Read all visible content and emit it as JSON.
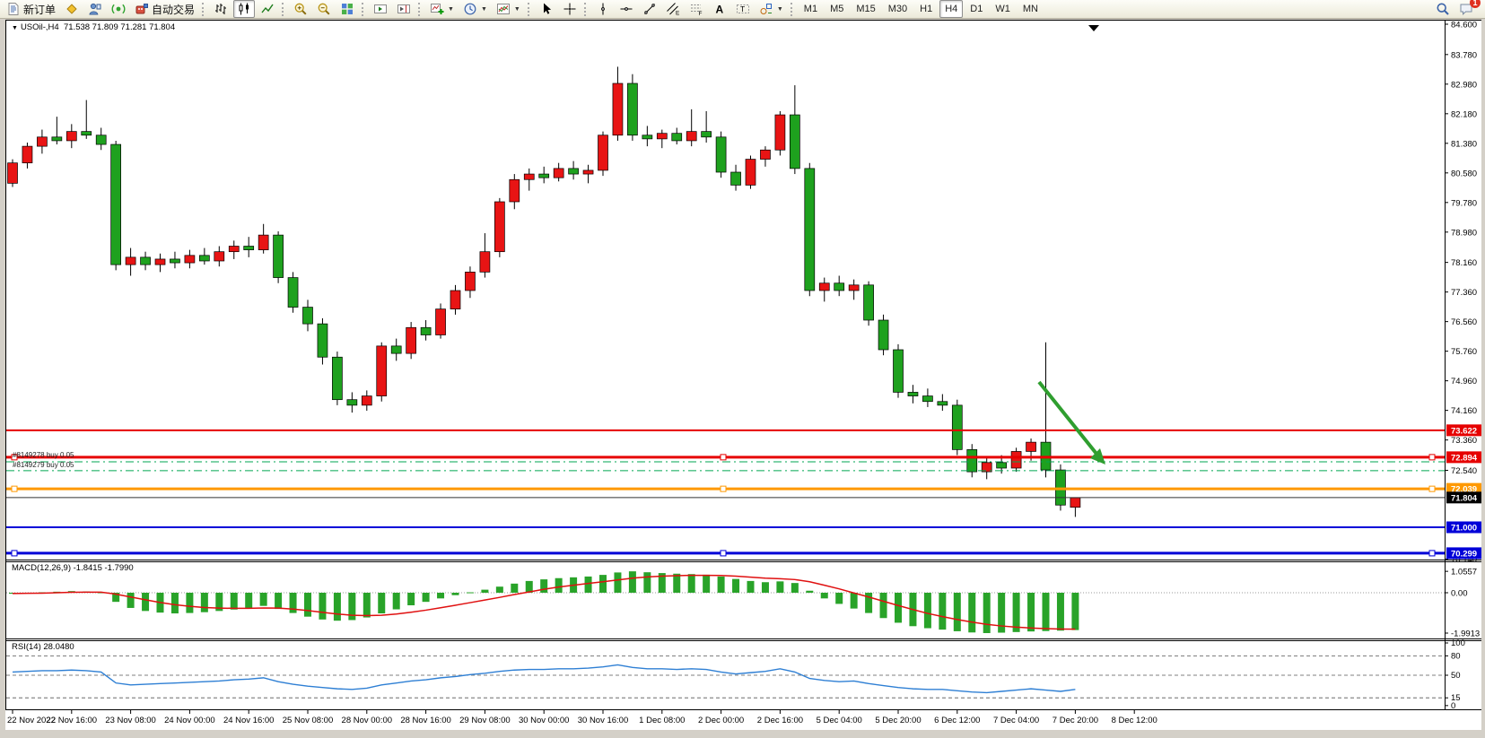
{
  "toolbar": {
    "new_order_label": "新订单",
    "autotrade_label": "自动交易",
    "items": [
      {
        "icon": "new-order-icon",
        "label_key": "new_order_label",
        "name": "new-order-button"
      },
      {
        "icon": "market-watch-icon",
        "name": "market-watch-button"
      },
      {
        "icon": "navigator-icon",
        "name": "navigator-button"
      },
      {
        "icon": "alerts-icon",
        "name": "alerts-button"
      },
      {
        "icon": "autotrade-icon",
        "label_key": "autotrade_label",
        "name": "autotrading-button"
      },
      {
        "sep": true
      },
      {
        "icon": "bar-chart-icon",
        "name": "bar-chart-button"
      },
      {
        "icon": "candle-chart-icon",
        "name": "candle-chart-button",
        "active": true
      },
      {
        "icon": "line-chart-icon",
        "name": "line-chart-button"
      },
      {
        "sep": true
      },
      {
        "icon": "zoom-in-icon",
        "name": "zoom-in-button"
      },
      {
        "icon": "zoom-out-icon",
        "name": "zoom-out-button"
      },
      {
        "icon": "tile-windows-icon",
        "name": "tile-windows-button"
      },
      {
        "sep": true
      },
      {
        "icon": "auto-scroll-icon",
        "name": "auto-scroll-button"
      },
      {
        "icon": "chart-shift-icon",
        "name": "chart-shift-button"
      },
      {
        "sep": true
      },
      {
        "icon": "new-chart-icon",
        "name": "new-chart-button",
        "dropdown": true
      },
      {
        "icon": "profiles-icon",
        "name": "profiles-button",
        "dropdown": true
      },
      {
        "icon": "indicators-icon",
        "name": "indicators-button",
        "dropdown": true
      },
      {
        "sep": true
      },
      {
        "icon": "cursor-icon",
        "name": "cursor-button"
      },
      {
        "icon": "crosshair-icon",
        "name": "crosshair-button"
      },
      {
        "sep": true
      },
      {
        "icon": "vline-icon",
        "name": "vertical-line-button"
      },
      {
        "icon": "hline-icon",
        "name": "horizontal-line-button"
      },
      {
        "icon": "trendline-icon",
        "name": "trendline-button"
      },
      {
        "icon": "channel-icon",
        "name": "equidistant-channel-button"
      },
      {
        "icon": "fibonacci-icon",
        "name": "fibonacci-button"
      },
      {
        "icon": "text-icon",
        "name": "text-button"
      },
      {
        "icon": "label-icon",
        "name": "text-label-button"
      },
      {
        "icon": "shapes-icon",
        "name": "arrows-button",
        "dropdown": true
      },
      {
        "sep": true
      }
    ],
    "timeframes": [
      "M1",
      "M5",
      "M15",
      "M30",
      "H1",
      "H4",
      "D1",
      "W1",
      "MN"
    ],
    "active_timeframe": "H4",
    "notification_count": "1"
  },
  "chart": {
    "title_symbol": "USOil-,H4",
    "title_ohlc": "71.538 71.809 71.281 71.804",
    "axis_prices": [
      "84.600",
      "83.780",
      "82.980",
      "82.180",
      "81.380",
      "80.580",
      "79.780",
      "78.980",
      "78.160",
      "77.360",
      "76.560",
      "75.760",
      "74.960",
      "74.160",
      "73.360",
      "72.540",
      "70.140"
    ],
    "price_badges": [
      {
        "text": "73.622",
        "bg": "#e60000",
        "fg": "#ffffff",
        "price": 73.622
      },
      {
        "text": "72.894",
        "bg": "#e60000",
        "fg": "#ffffff",
        "price": 72.894
      },
      {
        "text": "72.039",
        "bg": "#ff9900",
        "fg": "#ffffff",
        "price": 72.039
      },
      {
        "text": "71.804",
        "bg": "#000000",
        "fg": "#ffffff",
        "price": 71.804
      },
      {
        "text": "71.000",
        "bg": "#0000d8",
        "fg": "#ffffff",
        "price": 71.0
      },
      {
        "text": "70.299",
        "bg": "#0000d8",
        "fg": "#ffffff",
        "price": 70.299
      }
    ],
    "hlines": [
      {
        "price": 73.622,
        "color": "#e60000",
        "width": 2,
        "handles": false
      },
      {
        "price": 72.894,
        "color": "#e60000",
        "width": 3,
        "handles": true
      },
      {
        "price": 72.039,
        "color": "#ff9900",
        "width": 3,
        "handles": true
      },
      {
        "price": 71.804,
        "color": "#333333",
        "width": 1,
        "handles": false
      },
      {
        "price": 71.0,
        "color": "#0000d8",
        "width": 2,
        "handles": false
      },
      {
        "price": 70.299,
        "color": "#0000d8",
        "width": 3,
        "handles": true
      }
    ],
    "orders": [
      {
        "label": "#8149278 buy 0.05",
        "price": 72.77,
        "color": "#00a650"
      },
      {
        "label": "#8149279 buy 0.05",
        "price": 72.53,
        "color": "#00a650"
      }
    ],
    "macd": {
      "label": "MACD(12,26,9) -1.8415 -1.7990",
      "axis": [
        [
          "1.0557",
          1.0557
        ],
        [
          "0.00",
          0
        ],
        [
          "-1.9913",
          -1.9913
        ]
      ]
    },
    "rsi": {
      "label": "RSI(14) 28.0480",
      "axis": [
        [
          "100",
          100
        ],
        [
          "80",
          80
        ],
        [
          "50",
          50
        ],
        [
          "15",
          15
        ],
        [
          "0",
          3
        ]
      ],
      "levels": [
        80,
        50,
        15
      ]
    }
  },
  "chart_data": {
    "type": "candlestick",
    "symbol": "USOil",
    "timeframe": "H4",
    "ylim": [
      70.14,
      84.6
    ],
    "up_color": "#e81414",
    "down_color": "#1ea11e",
    "x_labels": [
      "22 Nov 2022",
      "22 Nov 16:00",
      "23 Nov 08:00",
      "24 Nov 00:00",
      "24 Nov 16:00",
      "25 Nov 08:00",
      "28 Nov 00:00",
      "28 Nov 16:00",
      "29 Nov 08:00",
      "30 Nov 00:00",
      "30 Nov 16:00",
      "1 Dec 08:00",
      "2 Dec 00:00",
      "2 Dec 16:00",
      "5 Dec 04:00",
      "5 Dec 20:00",
      "6 Dec 12:00",
      "7 Dec 04:00",
      "7 Dec 20:00",
      "8 Dec 12:00"
    ],
    "candles": [
      [
        80.3,
        80.95,
        80.2,
        80.85
      ],
      [
        80.85,
        81.4,
        80.7,
        81.3
      ],
      [
        81.3,
        81.75,
        81.1,
        81.55
      ],
      [
        81.55,
        82.1,
        81.35,
        81.45
      ],
      [
        81.45,
        81.9,
        81.25,
        81.7
      ],
      [
        81.7,
        82.55,
        81.5,
        81.6
      ],
      [
        81.6,
        81.8,
        81.2,
        81.35
      ],
      [
        81.35,
        81.45,
        77.95,
        78.1
      ],
      [
        78.1,
        78.55,
        77.8,
        78.3
      ],
      [
        78.3,
        78.45,
        77.95,
        78.1
      ],
      [
        78.1,
        78.4,
        77.9,
        78.25
      ],
      [
        78.25,
        78.45,
        78.0,
        78.15
      ],
      [
        78.15,
        78.5,
        78.0,
        78.35
      ],
      [
        78.35,
        78.55,
        78.1,
        78.2
      ],
      [
        78.2,
        78.6,
        78.05,
        78.45
      ],
      [
        78.45,
        78.75,
        78.25,
        78.6
      ],
      [
        78.6,
        78.85,
        78.3,
        78.5
      ],
      [
        78.5,
        79.2,
        78.4,
        78.9
      ],
      [
        78.9,
        79.0,
        77.6,
        77.75
      ],
      [
        77.75,
        77.9,
        76.8,
        76.95
      ],
      [
        76.95,
        77.15,
        76.3,
        76.5
      ],
      [
        76.5,
        76.65,
        75.4,
        75.6
      ],
      [
        75.6,
        75.75,
        74.3,
        74.45
      ],
      [
        74.45,
        74.65,
        74.1,
        74.3
      ],
      [
        74.3,
        74.7,
        74.15,
        74.55
      ],
      [
        74.55,
        76.0,
        74.4,
        75.9
      ],
      [
        75.9,
        76.1,
        75.5,
        75.7
      ],
      [
        75.7,
        76.55,
        75.55,
        76.4
      ],
      [
        76.4,
        76.6,
        76.05,
        76.2
      ],
      [
        76.2,
        77.05,
        76.1,
        76.9
      ],
      [
        76.9,
        77.55,
        76.75,
        77.4
      ],
      [
        77.4,
        78.05,
        77.2,
        77.9
      ],
      [
        77.9,
        78.95,
        77.75,
        78.45
      ],
      [
        78.45,
        79.9,
        78.3,
        79.8
      ],
      [
        79.8,
        80.55,
        79.6,
        80.4
      ],
      [
        80.4,
        80.7,
        80.1,
        80.55
      ],
      [
        80.55,
        80.75,
        80.3,
        80.45
      ],
      [
        80.45,
        80.85,
        80.35,
        80.7
      ],
      [
        80.7,
        80.9,
        80.4,
        80.55
      ],
      [
        80.55,
        80.8,
        80.3,
        80.65
      ],
      [
        80.65,
        81.7,
        80.5,
        81.6
      ],
      [
        81.6,
        83.45,
        81.45,
        83.0
      ],
      [
        83.0,
        83.25,
        81.45,
        81.6
      ],
      [
        81.6,
        81.85,
        81.3,
        81.5
      ],
      [
        81.5,
        81.75,
        81.25,
        81.65
      ],
      [
        81.65,
        81.8,
        81.35,
        81.45
      ],
      [
        81.45,
        82.3,
        81.3,
        81.7
      ],
      [
        81.7,
        82.25,
        81.4,
        81.55
      ],
      [
        81.55,
        81.7,
        80.45,
        80.6
      ],
      [
        80.6,
        80.8,
        80.1,
        80.25
      ],
      [
        80.25,
        81.05,
        80.15,
        80.95
      ],
      [
        80.95,
        81.3,
        80.75,
        81.2
      ],
      [
        81.2,
        82.25,
        81.05,
        82.15
      ],
      [
        82.15,
        82.95,
        80.55,
        80.7
      ],
      [
        80.7,
        80.85,
        77.25,
        77.4
      ],
      [
        77.4,
        77.75,
        77.1,
        77.6
      ],
      [
        77.6,
        77.8,
        77.25,
        77.4
      ],
      [
        77.4,
        77.7,
        77.15,
        77.55
      ],
      [
        77.55,
        77.65,
        76.45,
        76.6
      ],
      [
        76.6,
        76.75,
        75.65,
        75.8
      ],
      [
        75.8,
        75.95,
        74.5,
        74.65
      ],
      [
        74.65,
        74.85,
        74.35,
        74.55
      ],
      [
        74.55,
        74.75,
        74.25,
        74.4
      ],
      [
        74.4,
        74.6,
        74.15,
        74.3
      ],
      [
        74.3,
        74.45,
        72.95,
        73.1
      ],
      [
        73.1,
        73.25,
        72.35,
        72.5
      ],
      [
        72.5,
        72.9,
        72.3,
        72.75
      ],
      [
        72.75,
        72.95,
        72.45,
        72.6
      ],
      [
        72.6,
        73.15,
        72.5,
        73.05
      ],
      [
        73.05,
        73.4,
        72.8,
        73.3
      ],
      [
        73.3,
        76.0,
        72.35,
        72.55
      ],
      [
        72.55,
        72.7,
        71.45,
        71.6
      ],
      [
        71.54,
        71.81,
        71.28,
        71.8
      ]
    ],
    "macd_hist": [
      -0.05,
      -0.02,
      0.02,
      0.05,
      0.08,
      0.06,
      0.02,
      -0.45,
      -0.75,
      -0.9,
      -0.98,
      -1.02,
      -1.0,
      -0.96,
      -0.9,
      -0.83,
      -0.75,
      -0.65,
      -0.8,
      -1.0,
      -1.18,
      -1.32,
      -1.38,
      -1.35,
      -1.22,
      -1.02,
      -0.82,
      -0.62,
      -0.45,
      -0.28,
      -0.12,
      0.02,
      0.15,
      0.3,
      0.45,
      0.58,
      0.66,
      0.72,
      0.76,
      0.8,
      0.88,
      1.0,
      1.0557,
      1.01,
      0.97,
      0.94,
      0.92,
      0.89,
      0.8,
      0.68,
      0.58,
      0.52,
      0.56,
      0.48,
      0.1,
      -0.28,
      -0.55,
      -0.78,
      -1.0,
      -1.25,
      -1.48,
      -1.65,
      -1.75,
      -1.82,
      -1.9,
      -1.96,
      -1.9913,
      -1.97,
      -1.94,
      -1.91,
      -1.89,
      -1.87,
      -1.8415
    ],
    "macd_signal": [
      -0.04,
      -0.03,
      -0.02,
      0.0,
      0.02,
      0.03,
      0.03,
      -0.07,
      -0.21,
      -0.35,
      -0.48,
      -0.59,
      -0.67,
      -0.73,
      -0.76,
      -0.77,
      -0.77,
      -0.75,
      -0.76,
      -0.81,
      -0.88,
      -0.97,
      -1.05,
      -1.11,
      -1.13,
      -1.11,
      -1.05,
      -0.96,
      -0.86,
      -0.74,
      -0.62,
      -0.49,
      -0.36,
      -0.23,
      -0.09,
      0.04,
      0.17,
      0.28,
      0.37,
      0.46,
      0.54,
      0.63,
      0.72,
      0.78,
      0.82,
      0.84,
      0.86,
      0.86,
      0.85,
      0.82,
      0.77,
      0.72,
      0.69,
      0.65,
      0.54,
      0.37,
      0.19,
      -0.01,
      -0.21,
      -0.42,
      -0.63,
      -0.83,
      -1.02,
      -1.18,
      -1.32,
      -1.45,
      -1.56,
      -1.64,
      -1.7,
      -1.74,
      -1.77,
      -1.79,
      -1.799
    ],
    "rsi": [
      55,
      56,
      57,
      57,
      58,
      57,
      55,
      38,
      35,
      36,
      37,
      38,
      39,
      40,
      41,
      43,
      44,
      46,
      40,
      36,
      33,
      31,
      29,
      28,
      30,
      35,
      38,
      41,
      43,
      46,
      48,
      51,
      53,
      56,
      58,
      59,
      59,
      60,
      60,
      61,
      63,
      66,
      62,
      60,
      60,
      59,
      60,
      59,
      55,
      52,
      54,
      56,
      60,
      55,
      45,
      42,
      40,
      41,
      37,
      34,
      31,
      29,
      28,
      28,
      26,
      24,
      23,
      25,
      27,
      29,
      27,
      25,
      28.05
    ],
    "annotations": [
      {
        "type": "arrow",
        "from": [
          1152,
          404
        ],
        "to": [
          1216,
          484
        ],
        "color": "#2f9e2f"
      },
      {
        "type": "shift-marker",
        "x": 1213
      }
    ]
  }
}
